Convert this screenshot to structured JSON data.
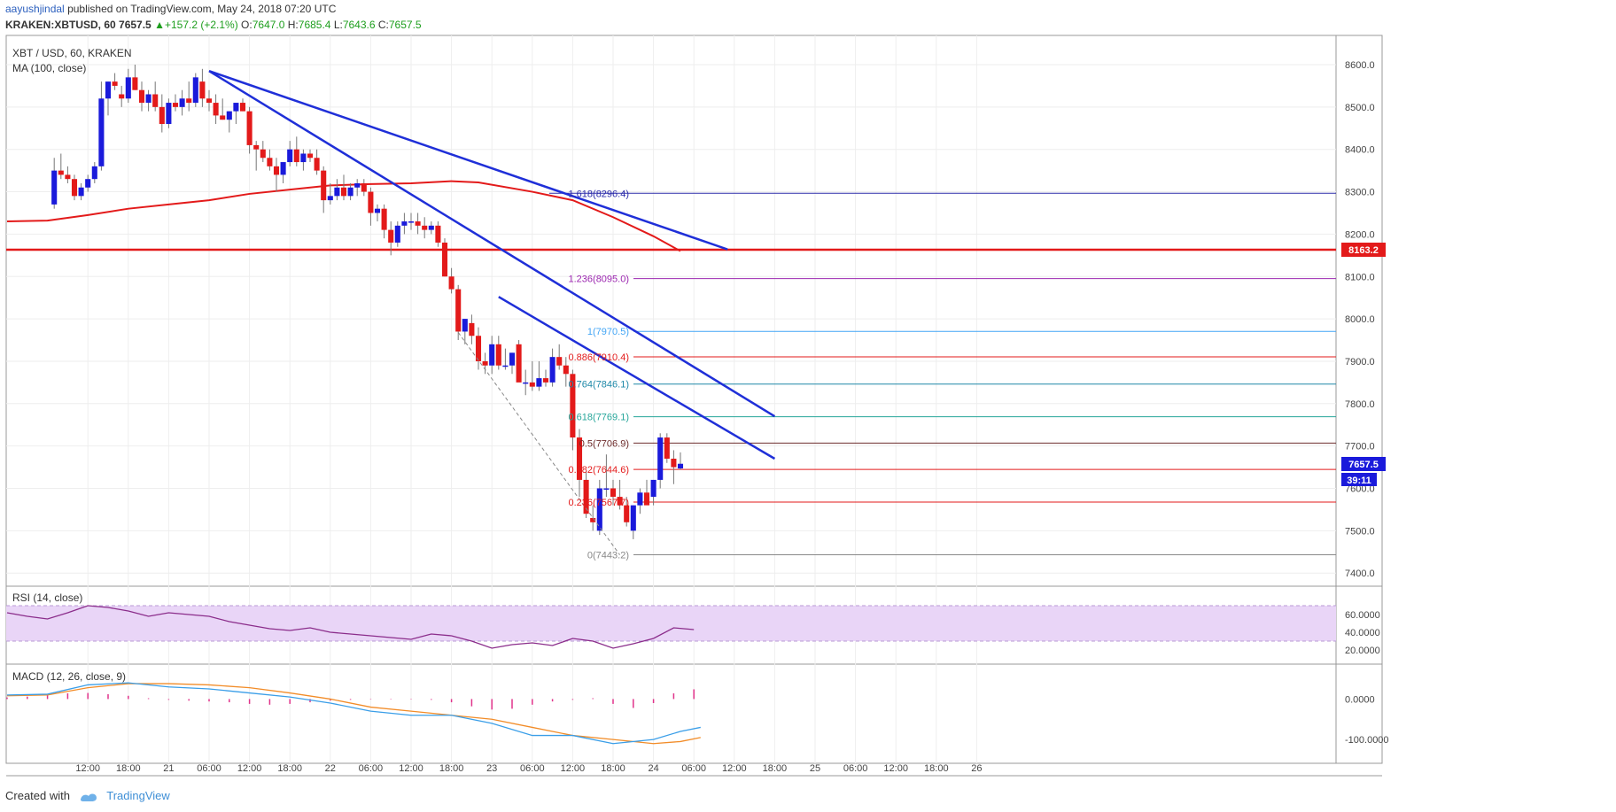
{
  "header": {
    "author": "aayushjindal",
    "published": "published on TradingView.com, May 24, 2018 07:20 UTC",
    "symbol": "KRAKEN:XBTUSD, 60",
    "price": "7657.5",
    "change": "+157.2 (+2.1%)",
    "ohlc_o_label": "O:",
    "ohlc_o": "7647.0",
    "ohlc_h_label": "H:",
    "ohlc_h": "7685.4",
    "ohlc_l_label": "L:",
    "ohlc_l": "7643.6",
    "ohlc_c_label": "C:",
    "ohlc_c": "7657.5"
  },
  "footer": {
    "created_with": "Created with",
    "brand": "TradingView"
  },
  "colors": {
    "up": "#1a1adb",
    "down": "#e31a1a",
    "ma": "#e31a1a",
    "trendline": "#1f2fd8",
    "rsi_band": "#e9d5f7",
    "rsi_line": "#8b2d8b",
    "macd_line": "#3a9ee8",
    "signal_line": "#f28c28",
    "histogram": "#e0338a"
  },
  "chart_data": {
    "type": "candlestick",
    "panel_title": "XBT / USD, 60, KRAKEN",
    "indicator_label": "MA (100, close)",
    "ylim": [
      7370,
      8660
    ],
    "y_ticks": [
      "8600.0",
      "8500.0",
      "8400.0",
      "8300.0",
      "8200.0",
      "8100.0",
      "8000.0",
      "7900.0",
      "7800.0",
      "7700.0",
      "7600.0",
      "7500.0",
      "7400.0"
    ],
    "x_ticks": [
      {
        "label": "12:00",
        "t": 12
      },
      {
        "label": "18:00",
        "t": 18
      },
      {
        "label": "21",
        "t": 24
      },
      {
        "label": "06:00",
        "t": 30
      },
      {
        "label": "12:00",
        "t": 36
      },
      {
        "label": "18:00",
        "t": 42
      },
      {
        "label": "22",
        "t": 48
      },
      {
        "label": "06:00",
        "t": 54
      },
      {
        "label": "12:00",
        "t": 60
      },
      {
        "label": "18:00",
        "t": 66
      },
      {
        "label": "23",
        "t": 72
      },
      {
        "label": "06:00",
        "t": 78
      },
      {
        "label": "12:00",
        "t": 84
      },
      {
        "label": "18:00",
        "t": 90
      },
      {
        "label": "24",
        "t": 96
      },
      {
        "label": "06:00",
        "t": 102
      },
      {
        "label": "12:00",
        "t": 108
      },
      {
        "label": "18:00",
        "t": 114
      },
      {
        "label": "25",
        "t": 120
      },
      {
        "label": "06:00",
        "t": 126
      },
      {
        "label": "12:00",
        "t": 132
      },
      {
        "label": "18:00",
        "t": 138
      },
      {
        "label": "26",
        "t": 144
      }
    ],
    "candle_spacing_hours": 1,
    "first_candle_t": 7,
    "candles": [
      [
        8270,
        8380,
        8260,
        8350
      ],
      [
        8350,
        8390,
        8330,
        8340
      ],
      [
        8340,
        8360,
        8320,
        8330
      ],
      [
        8330,
        8340,
        8280,
        8290
      ],
      [
        8290,
        8320,
        8280,
        8310
      ],
      [
        8310,
        8340,
        8300,
        8330
      ],
      [
        8330,
        8370,
        8320,
        8360
      ],
      [
        8360,
        8560,
        8350,
        8520
      ],
      [
        8520,
        8560,
        8480,
        8560
      ],
      [
        8560,
        8580,
        8540,
        8550
      ],
      [
        8530,
        8550,
        8500,
        8520
      ],
      [
        8520,
        8590,
        8510,
        8570
      ],
      [
        8570,
        8600,
        8540,
        8540
      ],
      [
        8540,
        8560,
        8490,
        8510
      ],
      [
        8510,
        8540,
        8490,
        8530
      ],
      [
        8530,
        8560,
        8490,
        8500
      ],
      [
        8500,
        8530,
        8440,
        8460
      ],
      [
        8460,
        8520,
        8450,
        8510
      ],
      [
        8510,
        8530,
        8490,
        8500
      ],
      [
        8500,
        8540,
        8480,
        8520
      ],
      [
        8520,
        8560,
        8490,
        8510
      ],
      [
        8510,
        8580,
        8500,
        8570
      ],
      [
        8560,
        8590,
        8500,
        8520
      ],
      [
        8520,
        8540,
        8490,
        8510
      ],
      [
        8510,
        8530,
        8460,
        8480
      ],
      [
        8480,
        8520,
        8470,
        8470
      ],
      [
        8470,
        8490,
        8440,
        8490
      ],
      [
        8490,
        8510,
        8460,
        8510
      ],
      [
        8510,
        8520,
        8490,
        8490
      ],
      [
        8490,
        8500,
        8390,
        8410
      ],
      [
        8410,
        8420,
        8350,
        8400
      ],
      [
        8400,
        8420,
        8370,
        8380
      ],
      [
        8380,
        8400,
        8350,
        8360
      ],
      [
        8360,
        8380,
        8300,
        8340
      ],
      [
        8340,
        8370,
        8320,
        8370
      ],
      [
        8370,
        8420,
        8360,
        8400
      ],
      [
        8400,
        8430,
        8360,
        8370
      ],
      [
        8370,
        8400,
        8350,
        8390
      ],
      [
        8390,
        8400,
        8370,
        8380
      ],
      [
        8380,
        8400,
        8340,
        8350
      ],
      [
        8350,
        8360,
        8250,
        8280
      ],
      [
        8280,
        8320,
        8270,
        8290
      ],
      [
        8290,
        8330,
        8280,
        8310
      ],
      [
        8310,
        8340,
        8280,
        8290
      ],
      [
        8290,
        8320,
        8280,
        8310
      ],
      [
        8310,
        8330,
        8290,
        8320
      ],
      [
        8320,
        8330,
        8290,
        8300
      ],
      [
        8300,
        8310,
        8220,
        8250
      ],
      [
        8250,
        8270,
        8230,
        8260
      ],
      [
        8260,
        8270,
        8190,
        8210
      ],
      [
        8210,
        8230,
        8150,
        8180
      ],
      [
        8180,
        8230,
        8170,
        8220
      ],
      [
        8220,
        8250,
        8200,
        8230
      ],
      [
        8230,
        8250,
        8210,
        8230
      ],
      [
        8230,
        8250,
        8200,
        8220
      ],
      [
        8220,
        8240,
        8190,
        8210
      ],
      [
        8210,
        8230,
        8200,
        8220
      ],
      [
        8220,
        8230,
        8170,
        8180
      ],
      [
        8180,
        8190,
        8100,
        8100
      ],
      [
        8100,
        8120,
        8060,
        8070
      ],
      [
        8070,
        8080,
        7950,
        7970
      ],
      [
        7970,
        8000,
        7940,
        8000
      ],
      [
        7990,
        8010,
        7940,
        7960
      ],
      [
        7960,
        7980,
        7880,
        7900
      ],
      [
        7900,
        7920,
        7870,
        7890
      ],
      [
        7890,
        7960,
        7870,
        7940
      ],
      [
        7940,
        7960,
        7880,
        7890
      ],
      [
        7890,
        7930,
        7880,
        7890
      ],
      [
        7890,
        7920,
        7870,
        7920
      ],
      [
        7940,
        7950,
        7860,
        7850
      ],
      [
        7850,
        7880,
        7820,
        7850
      ],
      [
        7850,
        7900,
        7830,
        7840
      ],
      [
        7840,
        7900,
        7830,
        7860
      ],
      [
        7860,
        7880,
        7840,
        7850
      ],
      [
        7850,
        7930,
        7840,
        7910
      ],
      [
        7910,
        7940,
        7880,
        7890
      ],
      [
        7890,
        7910,
        7840,
        7870
      ],
      [
        7870,
        7880,
        7690,
        7720
      ],
      [
        7720,
        7740,
        7580,
        7620
      ],
      [
        7620,
        7640,
        7530,
        7540
      ],
      [
        7530,
        7560,
        7500,
        7520
      ],
      [
        7500,
        7620,
        7490,
        7600
      ],
      [
        7600,
        7680,
        7580,
        7600
      ],
      [
        7600,
        7620,
        7560,
        7580
      ],
      [
        7580,
        7620,
        7550,
        7560
      ],
      [
        7560,
        7580,
        7510,
        7520
      ],
      [
        7500,
        7560,
        7480,
        7560
      ],
      [
        7560,
        7600,
        7540,
        7590
      ],
      [
        7590,
        7620,
        7570,
        7560
      ],
      [
        7580,
        7620,
        7560,
        7620
      ],
      [
        7620,
        7730,
        7600,
        7720
      ],
      [
        7720,
        7730,
        7660,
        7670
      ],
      [
        7670,
        7690,
        7610,
        7650
      ],
      [
        7647,
        7685,
        7644,
        7658
      ]
    ],
    "ma_series": {
      "name": "MA (100, close)",
      "x": [
        0,
        6,
        12,
        18,
        24,
        30,
        36,
        42,
        48,
        54,
        60,
        66,
        70,
        78,
        84,
        90,
        96,
        100
      ],
      "y": [
        8230,
        8232,
        8245,
        8260,
        8270,
        8280,
        8295,
        8305,
        8315,
        8318,
        8320,
        8325,
        8322,
        8300,
        8280,
        8240,
        8195,
        8160
      ]
    },
    "horizontal_levels": [
      {
        "price": 8296.4,
        "label": "1.618(8296.4)",
        "color": "#2b2baa"
      },
      {
        "price": 8163.2,
        "label": "",
        "color": "#e31a1a"
      },
      {
        "price": 8095.0,
        "label": "1.236(8095.0)",
        "color": "#9c27b0"
      },
      {
        "price": 7970.5,
        "label": "1(7970.5)",
        "color": "#42a5f5"
      },
      {
        "price": 7910.4,
        "label": "0.886(7910.4)",
        "color": "#e31a1a"
      },
      {
        "price": 7846.1,
        "label": "0.764(7846.1)",
        "color": "#1e88a8"
      },
      {
        "price": 7769.1,
        "label": "0.618(7769.1)",
        "color": "#26a69a"
      },
      {
        "price": 7706.9,
        "label": "0.5(7706.9)",
        "color": "#6d2b2b"
      },
      {
        "price": 7644.6,
        "label": "0.382(7644.6)",
        "color": "#e31a1a"
      },
      {
        "price": 7567.7,
        "label": "0.236(7567.7)",
        "color": "#e31a1a"
      },
      {
        "price": 7443.2,
        "label": "0(7443.2)",
        "color": "#888888"
      }
    ],
    "trendlines": [
      {
        "t1": 30,
        "p1": 8585,
        "t2": 107,
        "p2": 8164
      },
      {
        "t1": 30,
        "p1": 8585,
        "t2": 114,
        "p2": 7770
      },
      {
        "t1": 73,
        "p1": 8052,
        "t2": 114,
        "p2": 7670
      }
    ],
    "dashed_line": {
      "t1": 67,
      "p1": 7968,
      "t2": 91,
      "p2": 7443
    },
    "price_badges": [
      {
        "price": 8163.2,
        "label": "8163.2",
        "color": "#e31a1a"
      },
      {
        "price": 7657.5,
        "label": "7657.5",
        "color": "#1a1adb"
      }
    ],
    "countdown": "39:11",
    "rsi": {
      "label": "RSI (14, close)",
      "ylim": [
        10,
        80
      ],
      "y_ticks": [
        "60.0000",
        "40.0000",
        "20.0000"
      ],
      "band": [
        30,
        70
      ],
      "x": [
        0,
        3,
        6,
        9,
        12,
        15,
        18,
        21,
        24,
        27,
        30,
        33,
        36,
        39,
        42,
        45,
        48,
        51,
        54,
        57,
        60,
        63,
        66,
        69,
        72,
        75,
        78,
        81,
        84,
        87,
        90,
        93,
        96,
        99,
        102
      ],
      "y": [
        62,
        58,
        55,
        62,
        70,
        68,
        64,
        58,
        62,
        60,
        58,
        52,
        48,
        44,
        42,
        45,
        40,
        38,
        36,
        34,
        32,
        38,
        36,
        30,
        22,
        26,
        28,
        25,
        33,
        30,
        22,
        27,
        33,
        45,
        43
      ]
    },
    "macd": {
      "label": "MACD (12, 26, close, 9)",
      "ylim": [
        -150,
        60
      ],
      "y_ticks": [
        "0.0000",
        "-100.0000"
      ],
      "x": [
        0,
        6,
        12,
        18,
        24,
        30,
        36,
        42,
        48,
        54,
        60,
        66,
        72,
        78,
        84,
        90,
        96,
        100,
        103
      ],
      "macd": [
        10,
        12,
        35,
        40,
        30,
        25,
        15,
        5,
        -10,
        -30,
        -40,
        -40,
        -60,
        -90,
        -90,
        -110,
        -100,
        -80,
        -70
      ],
      "signal": [
        8,
        10,
        28,
        38,
        38,
        35,
        28,
        15,
        0,
        -20,
        -30,
        -40,
        -50,
        -70,
        -90,
        -100,
        -110,
        -105,
        -95
      ],
      "hist_x": [
        0,
        3,
        6,
        9,
        12,
        15,
        18,
        21,
        24,
        27,
        30,
        33,
        36,
        39,
        42,
        45,
        48,
        51,
        54,
        57,
        60,
        63,
        66,
        69,
        72,
        75,
        78,
        81,
        84,
        87,
        90,
        93,
        96,
        99,
        102
      ],
      "hist": [
        4,
        6,
        10,
        14,
        15,
        12,
        8,
        2,
        -2,
        -4,
        -6,
        -8,
        -12,
        -14,
        -12,
        -8,
        -4,
        -2,
        -1,
        -1,
        -1,
        -2,
        -8,
        -18,
        -26,
        -24,
        -14,
        -6,
        -2,
        2,
        -12,
        -22,
        -10,
        14,
        24
      ]
    }
  }
}
